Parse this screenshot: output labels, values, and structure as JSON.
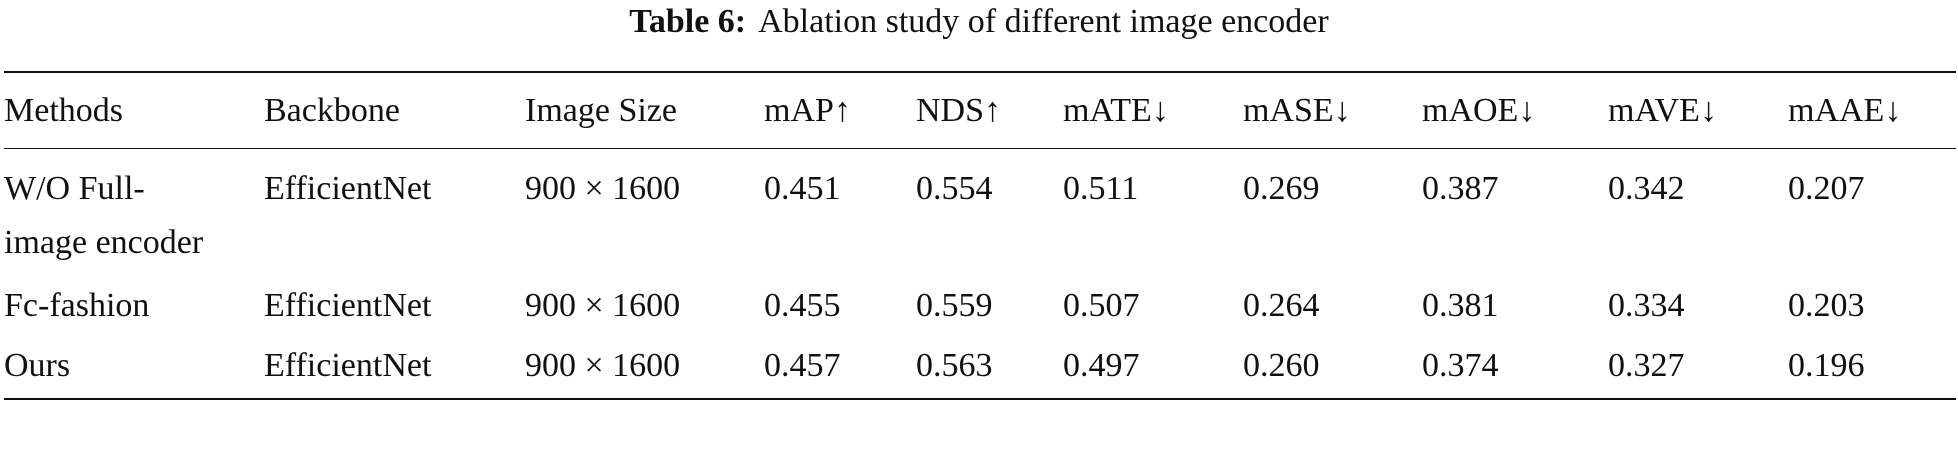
{
  "caption": {
    "label": "Table 6:",
    "text": "Ablation study of different image encoder"
  },
  "table": {
    "header": [
      "Methods",
      "Backbone",
      "Image Size",
      "mAP↑",
      "NDS↑",
      "mATE↓",
      "mASE↓",
      "mAOE↓",
      "mAVE↓",
      "mAAE↓"
    ],
    "rows": [
      [
        "W/O Full-image encoder",
        "EfficientNet",
        "900 × 1600",
        "0.451",
        "0.554",
        "0.511",
        "0.269",
        "0.387",
        "0.342",
        "0.207"
      ],
      [
        "Fc-fashion",
        "EfficientNet",
        "900 × 1600",
        "0.455",
        "0.559",
        "0.507",
        "0.264",
        "0.381",
        "0.334",
        "0.203"
      ],
      [
        "Ours",
        "EfficientNet",
        "900 × 1600",
        "0.457",
        "0.563",
        "0.497",
        "0.260",
        "0.374",
        "0.327",
        "0.196"
      ]
    ]
  }
}
